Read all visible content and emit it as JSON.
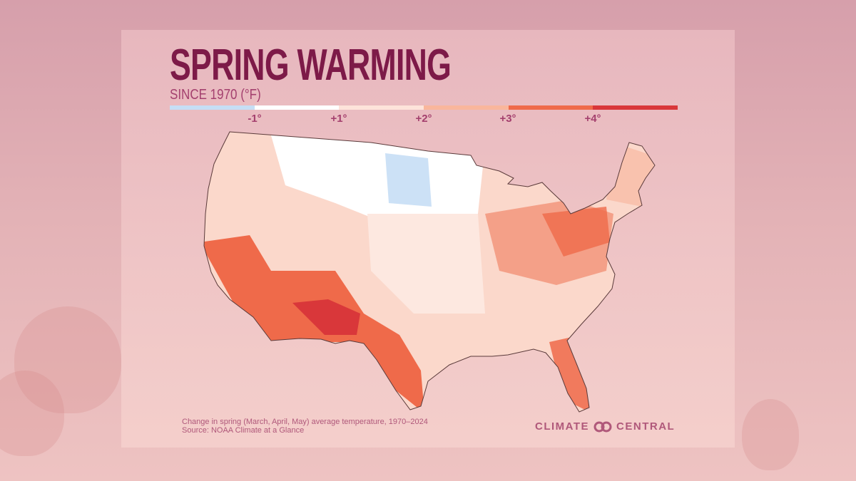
{
  "title": "SPRING WARMING",
  "subtitle": "SINCE 1970 (°F)",
  "legend": {
    "colors": [
      "#c6def5",
      "#ffffff",
      "#fde3da",
      "#f9b69c",
      "#ef6a4a",
      "#d9373a"
    ],
    "ticks": [
      "-1°",
      "+1°",
      "+2°",
      "+3°",
      "+4°"
    ]
  },
  "footer": {
    "caption": "Change in spring (March, April, May) average temperature, 1970–2024",
    "source": "Source: NOAA Climate at a Glance"
  },
  "logo": {
    "left": "CLIMATE",
    "right": "CENTRAL"
  }
}
